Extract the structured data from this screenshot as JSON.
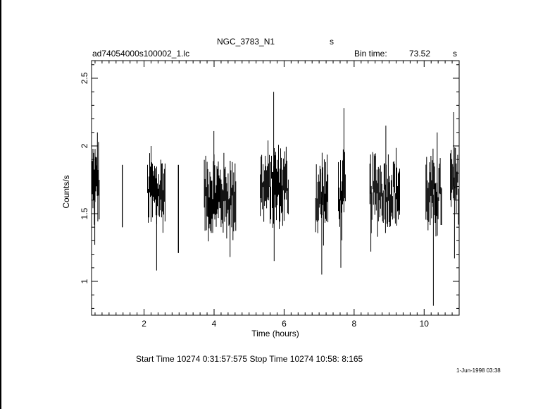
{
  "header": {
    "object_name": "NGC_3783_N1",
    "units": "s",
    "file_name": "ad74054000s100002_1.lc",
    "bin_time_label": "Bin time:",
    "bin_time_value": "73.52",
    "bin_time_unit": "s"
  },
  "footer": {
    "time_range": "Start Time 10274  0:31:57:575    Stop Time 10274 10:58: 8:165",
    "print_date": "1-Jun-1998 03:38"
  },
  "chart_data": {
    "type": "line",
    "xlabel": "Time (hours)",
    "ylabel": "Counts/s",
    "xlim": [
      0.5,
      11.0
    ],
    "ylim": [
      0.75,
      2.63
    ],
    "x_ticks": [
      2,
      4,
      6,
      8,
      10
    ],
    "x_tick_labels": [
      "2",
      "4",
      "6",
      "8",
      "10"
    ],
    "y_ticks": [
      1,
      1.5,
      2,
      2.5
    ],
    "y_tick_labels": [
      "1",
      "1.5",
      "2",
      "2.5"
    ],
    "grid": false,
    "series_style": "vertical error bars",
    "segments": [
      {
        "x_start": 0.52,
        "x_end": 0.72,
        "mean": 1.72,
        "min": 1.27,
        "max": 2.1
      },
      {
        "x_start": 1.38,
        "x_end": 1.38,
        "mean": 1.62,
        "min": 1.4,
        "max": 1.86
      },
      {
        "x_start": 2.1,
        "x_end": 2.6,
        "mean": 1.66,
        "min": 1.08,
        "max": 2.0
      },
      {
        "x_start": 2.98,
        "x_end": 2.98,
        "mean": 1.6,
        "min": 1.21,
        "max": 1.86
      },
      {
        "x_start": 3.72,
        "x_end": 4.62,
        "mean": 1.63,
        "min": 1.18,
        "max": 2.11
      },
      {
        "x_start": 5.32,
        "x_end": 6.12,
        "mean": 1.7,
        "min": 1.15,
        "max": 2.4
      },
      {
        "x_start": 6.9,
        "x_end": 7.25,
        "mean": 1.62,
        "min": 1.05,
        "max": 1.95
      },
      {
        "x_start": 7.55,
        "x_end": 7.75,
        "mean": 1.64,
        "min": 1.1,
        "max": 2.28
      },
      {
        "x_start": 8.45,
        "x_end": 9.3,
        "mean": 1.67,
        "min": 1.22,
        "max": 2.15
      },
      {
        "x_start": 10.05,
        "x_end": 10.5,
        "mean": 1.64,
        "min": 0.82,
        "max": 2.1
      },
      {
        "x_start": 10.75,
        "x_end": 11.0,
        "mean": 1.7,
        "min": 1.17,
        "max": 2.25
      }
    ]
  }
}
